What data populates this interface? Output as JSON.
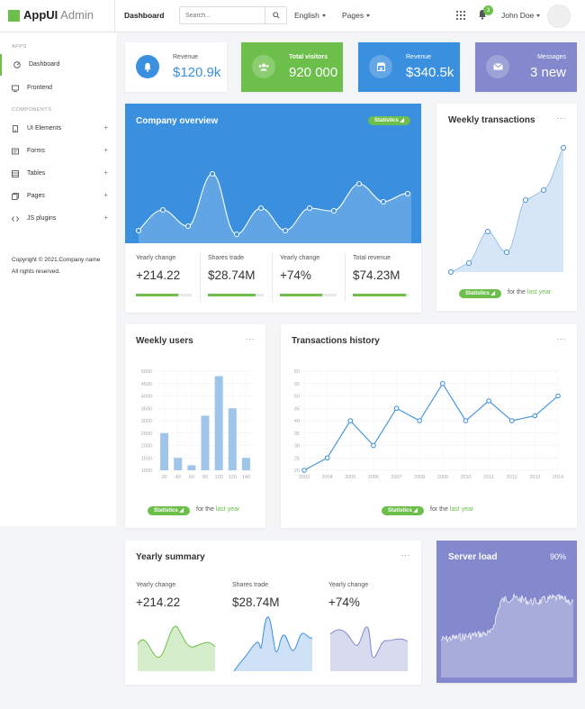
{
  "brand": {
    "name_bold": "AppUI",
    "name_light": " Admin"
  },
  "topbar": {
    "page": "Dashboard",
    "search_placeholder": "Search...",
    "language": "English",
    "pages_menu": "Pages",
    "notifications_count": "3",
    "user_name": "John Doe"
  },
  "sidebar": {
    "section_apps": "APPS",
    "section_components": "COMPONENTS",
    "items": [
      {
        "label": "Dashboard",
        "icon": "dashboard-icon"
      },
      {
        "label": "Frontend",
        "icon": "monitor-icon"
      },
      {
        "label": "UI Elements",
        "icon": "mobile-icon"
      },
      {
        "label": "Forms",
        "icon": "forms-icon"
      },
      {
        "label": "Tables",
        "icon": "table-icon"
      },
      {
        "label": "Pages",
        "icon": "pages-icon"
      },
      {
        "label": "JS plugins",
        "icon": "code-icon"
      }
    ],
    "copyright": "Copyright © 2021.Company name All rights reserved."
  },
  "stats": [
    {
      "label": "Revenue",
      "value": "$120.9k",
      "icon": "bell-icon",
      "color": "#3a8fde"
    },
    {
      "label": "Total visitors",
      "value": "920 000",
      "icon": "users-icon",
      "color": "#6dbf4b"
    },
    {
      "label": "Revenue",
      "value": "$340.5k",
      "icon": "shop-icon",
      "color": "#3a8fde"
    },
    {
      "label": "Messages",
      "value": "3 new",
      "icon": "mail-icon",
      "color": "#8389cc"
    }
  ],
  "overview": {
    "title": "Company overview",
    "badge": "Statistics",
    "metrics": [
      {
        "label": "Yearly change",
        "value": "+214.22",
        "progress": 0.75
      },
      {
        "label": "Shares trade",
        "value": "$28.74M",
        "progress": 0.85
      },
      {
        "label": "Yearly change",
        "value": "+74%",
        "progress": 0.75
      },
      {
        "label": "Total revenue",
        "value": "$74.23M",
        "progress": 0.95
      }
    ]
  },
  "weekly_transactions": {
    "title": "Weekly transactions",
    "menu": "···",
    "badge": "Statistics",
    "foot_text": "for the ",
    "foot_link": "last year"
  },
  "weekly_users": {
    "title": "Weekly users",
    "menu": "···",
    "badge": "Statistics",
    "foot_text": "for the ",
    "foot_link": "last year"
  },
  "transactions_history": {
    "title": "Transactions history",
    "menu": "···",
    "badge": "Statistics",
    "foot_text": "for the ",
    "foot_link": "last year"
  },
  "yearly_summary": {
    "title": "Yearly summary",
    "menu": "···",
    "metrics": [
      {
        "label": "Yearly change",
        "value": "+214.22"
      },
      {
        "label": "Shares trade",
        "value": "$28.74M"
      },
      {
        "label": "Yearly change",
        "value": "+74%"
      }
    ]
  },
  "server_load": {
    "title": "Server load",
    "value": "90%"
  },
  "colors": {
    "green": "#6dbf4b",
    "blue": "#3a8fde",
    "purple": "#8389cc"
  },
  "chart_data": [
    {
      "type": "bar",
      "name": "weekly_users",
      "categories": [
        "20",
        "40",
        "60",
        "80",
        "100",
        "120",
        "140"
      ],
      "values": [
        2500,
        1500,
        1200,
        3200,
        4800,
        3500,
        1500
      ],
      "ylim": [
        1000,
        5000
      ],
      "yticks": [
        1000,
        1500,
        2000,
        2500,
        3000,
        3500,
        4000,
        4500,
        5000
      ]
    },
    {
      "type": "line",
      "name": "transactions_history",
      "x": [
        "2003",
        "2004",
        "2005",
        "2006",
        "2007",
        "2008",
        "2009",
        "2010",
        "2011",
        "2012",
        "2013",
        "2014"
      ],
      "values": [
        20,
        25,
        40,
        30,
        45,
        40,
        55,
        40,
        48,
        40,
        42,
        50
      ],
      "ylim": [
        20,
        60
      ],
      "yticks": [
        20,
        25,
        30,
        35,
        40,
        45,
        50,
        55,
        60
      ]
    }
  ]
}
